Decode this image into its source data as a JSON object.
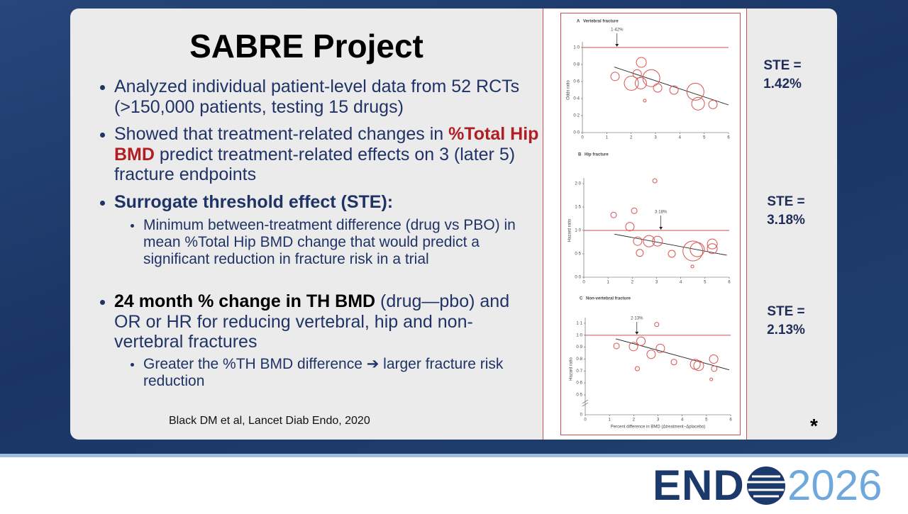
{
  "slide": {
    "title": "SABRE Project",
    "bullets": [
      {
        "segments": [
          {
            "text": "Analyzed individual patient-level data from 52 RCTs (>150,000 patients, testing 15 drugs)"
          }
        ]
      },
      {
        "segments": [
          {
            "text": "Showed that treatment-related changes in "
          },
          {
            "text": "%Total Hip BMD",
            "emphasis": "bold-red"
          },
          {
            "text": " predict treatment-related effects on 3 (later 5) fracture endpoints"
          }
        ]
      },
      {
        "segments": [
          {
            "text": "Surrogate threshold effect (STE):",
            "emphasis": "bold"
          }
        ],
        "sub": [
          {
            "segments": [
              {
                "text": "Minimum between-treatment difference (drug vs PBO) in mean %Total Hip BMD change that would predict a significant reduction in fracture risk in a trial"
              }
            ]
          }
        ]
      },
      {
        "segments": [
          {
            "text": "24 month % change in TH BMD",
            "emphasis": "bold-black"
          },
          {
            "text": " (drug—pbo) and OR or HR for reducing vertebral, hip and non-vertebral fractures"
          }
        ],
        "sub": [
          {
            "segments": [
              {
                "text": "Greater the %TH BMD difference ➔ larger fracture risk reduction"
              }
            ]
          }
        ]
      }
    ],
    "citation": "Black DM et al, Lancet Diab Endo, 2020",
    "footnote_mark": "*",
    "ste_labels": [
      [
        "STE =",
        "1.42%"
      ],
      [
        "STE =",
        "3.18%"
      ],
      [
        "STE =",
        "2.13%"
      ]
    ]
  },
  "chart_data": [
    {
      "type": "scatter",
      "panel": "A",
      "title": "Vertebral fracture",
      "ylabel": "Odds ratio",
      "color": "#d9534f",
      "xlim": [
        0,
        6
      ],
      "ylim": [
        0,
        1
      ],
      "xticks": [
        0,
        1,
        2,
        3,
        4,
        5,
        6
      ],
      "yticks": [
        {
          "value": 0,
          "label": "0·0"
        },
        {
          "value": 0.2,
          "label": "0·2"
        },
        {
          "value": 0.4,
          "label": "0·4"
        },
        {
          "value": 0.6,
          "label": "0·6"
        },
        {
          "value": 0.8,
          "label": "0·8"
        },
        {
          "value": 1,
          "label": "1·0"
        }
      ],
      "reference_line": 1,
      "threshold": {
        "value": 1.42,
        "label": "1·42%"
      },
      "fit": {
        "x": [
          1.31,
          6
        ],
        "y": [
          0.77,
          0.325
        ]
      },
      "x": [
        1.34,
        2.42,
        2.25,
        2.01,
        2.4,
        2.83,
        3.09,
        2.56,
        3.76,
        4.64,
        4.75,
        5.36
      ],
      "values": [
        0.66,
        0.825,
        0.69,
        0.58,
        0.58,
        0.64,
        0.525,
        0.375,
        0.5,
        0.48,
        0.34,
        0.33
      ],
      "sizes": [
        6,
        7,
        6,
        10,
        8,
        12,
        6,
        2,
        6,
        12,
        9,
        6
      ]
    },
    {
      "type": "scatter",
      "panel": "B",
      "title": "Hip fracture",
      "ylabel": "Hazard ratio",
      "color": "#d9534f",
      "xlim": [
        0,
        6
      ],
      "ylim": [
        0,
        2
      ],
      "xticks": [
        0,
        1,
        2,
        3,
        4,
        5,
        6
      ],
      "yticks": [
        {
          "value": 0,
          "label": "0·0"
        },
        {
          "value": 0.5,
          "label": "0·5"
        },
        {
          "value": 1,
          "label": "1·0"
        },
        {
          "value": 1.5,
          "label": "1·5"
        },
        {
          "value": 2,
          "label": "2·0"
        }
      ],
      "reference_line": 1,
      "threshold": {
        "value": 3.18,
        "label": "3·18%"
      },
      "fit": {
        "x": [
          1.26,
          5.9
        ],
        "y": [
          0.92,
          0.47
        ]
      },
      "x": [
        1.23,
        2.08,
        2.93,
        1.9,
        2.22,
        2.31,
        2.69,
        3.04,
        3.63,
        4.5,
        4.68,
        5.3,
        5.3,
        4.48
      ],
      "values": [
        1.33,
        1.42,
        2.06,
        1.08,
        0.77,
        0.52,
        0.77,
        0.77,
        0.5,
        0.56,
        0.59,
        0.71,
        0.61,
        0.23
      ],
      "sizes": [
        4,
        4,
        3,
        6,
        6,
        5,
        8,
        7,
        5,
        14,
        10,
        7,
        7,
        2
      ]
    },
    {
      "type": "scatter",
      "panel": "C",
      "title": "Non-vertebral fracture",
      "ylabel": "Hazard ratio",
      "color": "#d9534f",
      "xlabel": "Percent difference in BMD (Δtreatment−Δplacebo)",
      "axis_break_label": "0",
      "xlim": [
        0,
        6
      ],
      "ylim": [
        0.5,
        1.1
      ],
      "xticks": [
        0,
        1,
        2,
        3,
        4,
        5,
        6
      ],
      "yticks": [
        {
          "value": 0.5,
          "label": "0·5"
        },
        {
          "value": 0.6,
          "label": "0·6"
        },
        {
          "value": 0.7,
          "label": "0·7"
        },
        {
          "value": 0.8,
          "label": "0·8"
        },
        {
          "value": 0.9,
          "label": "0·9"
        },
        {
          "value": 1,
          "label": "1·0"
        },
        {
          "value": 1.1,
          "label": "1·1"
        }
      ],
      "reference_line": 1,
      "threshold": {
        "value": 2.13,
        "label": "2·13%"
      },
      "fit": {
        "x": [
          1.26,
          5.94
        ],
        "y": [
          0.97,
          0.71
        ]
      },
      "x": [
        1.29,
        1.99,
        2.3,
        2.15,
        2.95,
        3.1,
        2.72,
        3.66,
        4.54,
        4.68,
        5.3,
        5.32,
        5.2
      ],
      "values": [
        0.91,
        0.905,
        0.95,
        0.72,
        1.09,
        0.89,
        0.84,
        0.775,
        0.756,
        0.745,
        0.8,
        0.72,
        0.63
      ],
      "sizes": [
        4,
        6,
        6,
        3,
        3,
        6,
        6,
        4,
        7,
        7,
        6,
        4,
        2
      ]
    }
  ],
  "footer": {
    "brand": "END",
    "year": "2026"
  }
}
